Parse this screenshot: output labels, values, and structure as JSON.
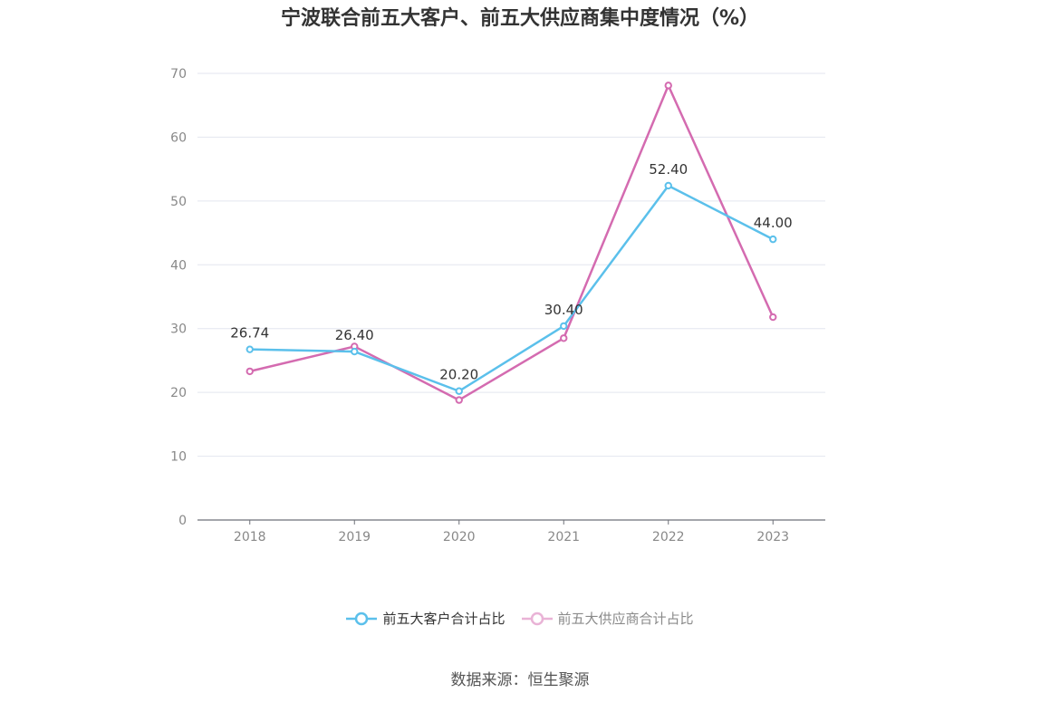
{
  "chart_data": {
    "type": "line",
    "title": "宁波联合前五大客户、前五大供应商集中度情况（%）",
    "categories": [
      "2018",
      "2019",
      "2020",
      "2021",
      "2022",
      "2023"
    ],
    "ylim": [
      0,
      70
    ],
    "yticks": [
      "0",
      "10",
      "20",
      "30",
      "40",
      "50",
      "60",
      "70"
    ],
    "grid": true,
    "legend_position": "bottom",
    "series": [
      {
        "name": "前五大客户合计占比",
        "color": "#5bc0eb",
        "values": [
          26.74,
          26.4,
          20.2,
          30.4,
          52.4,
          44.0
        ],
        "labels": [
          "26.74",
          "26.40",
          "20.20",
          "30.40",
          "52.40",
          "44.00"
        ]
      },
      {
        "name": "前五大供应商合计占比",
        "color": "#d46bb0",
        "values": [
          23.3,
          27.2,
          18.8,
          28.5,
          68.1,
          31.8
        ]
      }
    ],
    "source": "数据来源：恒生聚源"
  }
}
